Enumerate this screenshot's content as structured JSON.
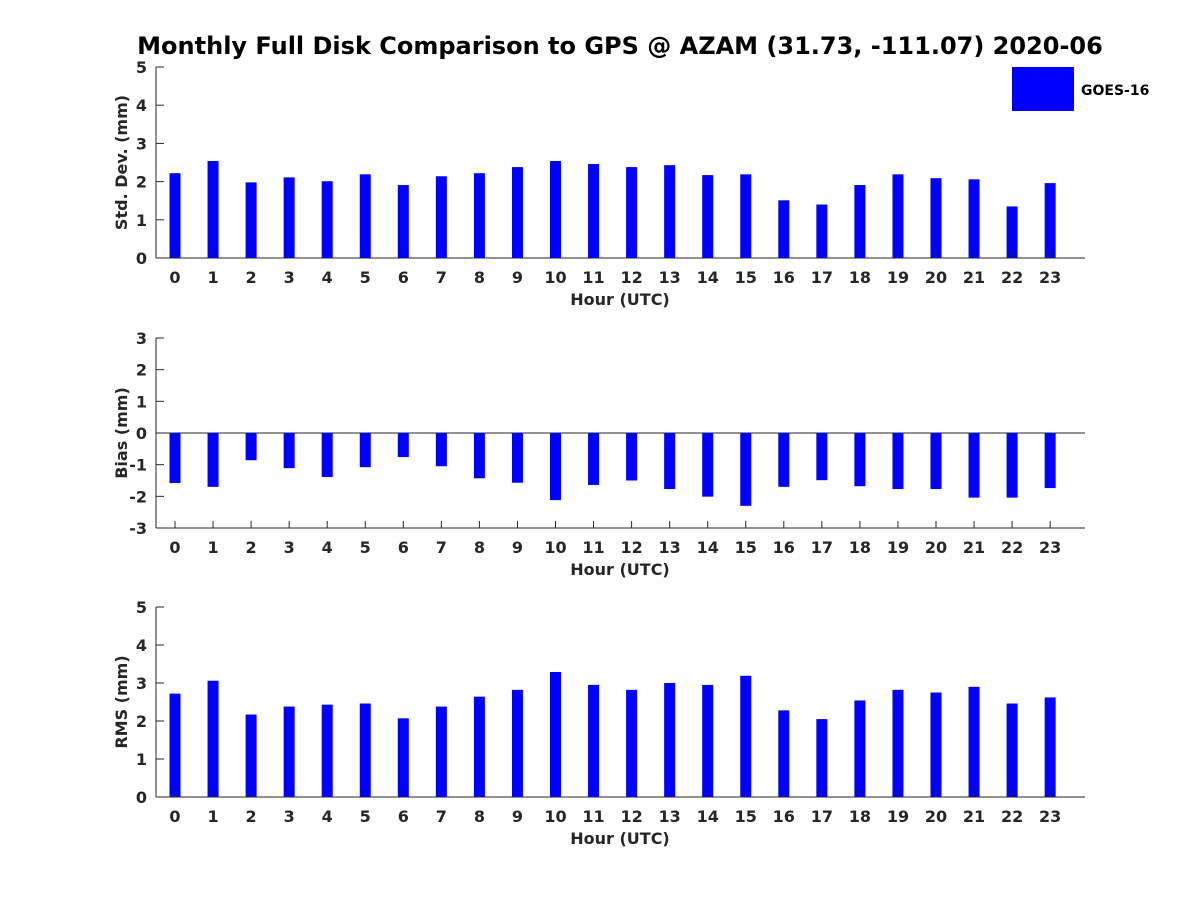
{
  "title": "Monthly Full Disk Comparison to GPS @ AZAM (31.73, -111.07) 2020-06",
  "legend": {
    "label": "GOES-16",
    "color": "#0000ff",
    "placement": "top-right"
  },
  "chart_data": [
    {
      "type": "bar",
      "xlabel": "Hour (UTC)",
      "ylabel": "Std. Dev. (mm)",
      "ylim": [
        0,
        5
      ],
      "yticks": [
        0,
        1,
        2,
        3,
        4,
        5
      ],
      "categories": [
        "0",
        "1",
        "2",
        "3",
        "4",
        "5",
        "6",
        "7",
        "8",
        "9",
        "10",
        "11",
        "12",
        "13",
        "14",
        "15",
        "16",
        "17",
        "18",
        "19",
        "20",
        "21",
        "22",
        "23"
      ],
      "series": [
        {
          "name": "GOES-16",
          "values": [
            2.22,
            2.54,
            1.98,
            2.11,
            2.01,
            2.19,
            1.91,
            2.14,
            2.22,
            2.38,
            2.54,
            2.46,
            2.38,
            2.43,
            2.17,
            2.19,
            1.51,
            1.4,
            1.91,
            2.19,
            2.09,
            2.06,
            1.35,
            1.96
          ]
        }
      ]
    },
    {
      "type": "bar",
      "xlabel": "Hour (UTC)",
      "ylabel": "Bias (mm)",
      "ylim": [
        -3,
        3
      ],
      "yticks": [
        -3,
        -2,
        -1,
        0,
        1,
        2,
        3
      ],
      "categories": [
        "0",
        "1",
        "2",
        "3",
        "4",
        "5",
        "6",
        "7",
        "8",
        "9",
        "10",
        "11",
        "12",
        "13",
        "14",
        "15",
        "16",
        "17",
        "18",
        "19",
        "20",
        "21",
        "22",
        "23"
      ],
      "series": [
        {
          "name": "GOES-16",
          "values": [
            -1.58,
            -1.7,
            -0.86,
            -1.11,
            -1.39,
            -1.08,
            -0.76,
            -1.05,
            -1.43,
            -1.57,
            -2.12,
            -1.64,
            -1.5,
            -1.77,
            -2.01,
            -2.3,
            -1.7,
            -1.49,
            -1.68,
            -1.77,
            -1.77,
            -2.04,
            -2.04,
            -1.74
          ]
        }
      ]
    },
    {
      "type": "bar",
      "xlabel": "Hour (UTC)",
      "ylabel": "RMS (mm)",
      "ylim": [
        0,
        5
      ],
      "yticks": [
        0,
        1,
        2,
        3,
        4,
        5
      ],
      "categories": [
        "0",
        "1",
        "2",
        "3",
        "4",
        "5",
        "6",
        "7",
        "8",
        "9",
        "10",
        "11",
        "12",
        "13",
        "14",
        "15",
        "16",
        "17",
        "18",
        "19",
        "20",
        "21",
        "22",
        "23"
      ],
      "series": [
        {
          "name": "GOES-16",
          "values": [
            2.72,
            3.06,
            2.17,
            2.38,
            2.43,
            2.46,
            2.07,
            2.38,
            2.64,
            2.82,
            3.29,
            2.95,
            2.82,
            3.0,
            2.95,
            3.19,
            2.28,
            2.05,
            2.54,
            2.82,
            2.75,
            2.9,
            2.46,
            2.62
          ]
        }
      ]
    }
  ]
}
